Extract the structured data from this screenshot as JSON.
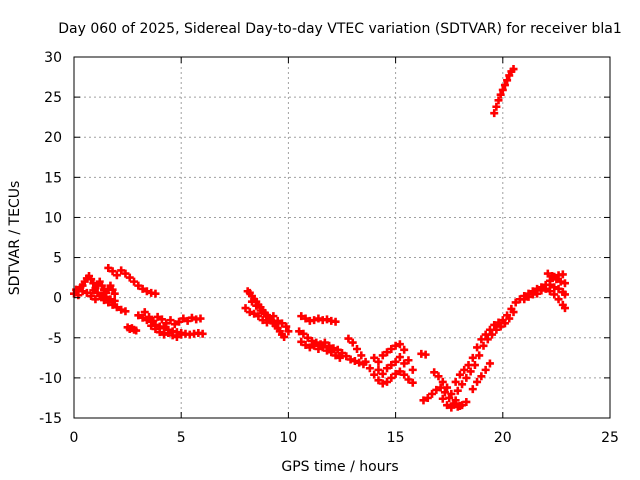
{
  "chart_data": {
    "type": "scatter",
    "title": "Day 060 of 2025, Sidereal Day-to-day VTEC variation (SDTVAR) for receiver bla1",
    "xlabel": "GPS time / hours",
    "ylabel": "SDTVAR / TECUs",
    "xlim": [
      0,
      25
    ],
    "ylim": [
      -15,
      30
    ],
    "xticks": [
      0,
      5,
      10,
      15,
      20,
      25
    ],
    "yticks": [
      -15,
      -10,
      -5,
      0,
      5,
      10,
      15,
      20,
      25,
      30
    ],
    "grid": true,
    "marker": "plus",
    "series": [
      {
        "name": "bla1",
        "color": "#ff0000",
        "points": [
          [
            0.0,
            0.5
          ],
          [
            0.1,
            1.0
          ],
          [
            0.2,
            0.8
          ],
          [
            0.3,
            1.3
          ],
          [
            0.4,
            1.5
          ],
          [
            0.5,
            2.0
          ],
          [
            0.6,
            2.4
          ],
          [
            0.7,
            2.7
          ],
          [
            0.8,
            2.3
          ],
          [
            0.9,
            1.8
          ],
          [
            1.0,
            1.2
          ],
          [
            1.1,
            1.6
          ],
          [
            1.2,
            2.0
          ],
          [
            1.3,
            1.5
          ],
          [
            1.4,
            1.0
          ],
          [
            1.5,
            0.6
          ],
          [
            1.6,
            1.1
          ],
          [
            1.7,
            1.5
          ],
          [
            1.8,
            1.0
          ],
          [
            1.9,
            0.5
          ],
          [
            0.2,
            0.3
          ],
          [
            0.4,
            0.8
          ],
          [
            0.6,
            0.6
          ],
          [
            0.8,
            0.2
          ],
          [
            1.0,
            -0.2
          ],
          [
            1.2,
            0.2
          ],
          [
            1.4,
            -0.3
          ],
          [
            1.6,
            -0.6
          ],
          [
            1.8,
            -0.9
          ],
          [
            2.0,
            -1.2
          ],
          [
            2.2,
            -1.5
          ],
          [
            2.4,
            -1.7
          ],
          [
            1.6,
            3.7
          ],
          [
            1.8,
            3.3
          ],
          [
            2.0,
            2.8
          ],
          [
            2.2,
            3.4
          ],
          [
            2.4,
            3.0
          ],
          [
            2.6,
            2.5
          ],
          [
            2.8,
            2.0
          ],
          [
            3.0,
            1.5
          ],
          [
            3.2,
            1.1
          ],
          [
            3.4,
            0.8
          ],
          [
            3.6,
            0.6
          ],
          [
            3.8,
            0.5
          ],
          [
            0.9,
            0.9
          ],
          [
            1.1,
            0.6
          ],
          [
            1.3,
            0.3
          ],
          [
            1.5,
            0.1
          ],
          [
            1.7,
            -0.2
          ],
          [
            1.9,
            -0.4
          ],
          [
            2.5,
            -3.7
          ],
          [
            2.6,
            -3.9
          ],
          [
            2.7,
            -3.8
          ],
          [
            2.8,
            -4.0
          ],
          [
            2.9,
            -4.1
          ],
          [
            3.0,
            -2.2
          ],
          [
            3.2,
            -2.5
          ],
          [
            3.4,
            -2.8
          ],
          [
            3.6,
            -3.0
          ],
          [
            3.8,
            -3.4
          ],
          [
            4.0,
            -3.6
          ],
          [
            4.2,
            -3.8
          ],
          [
            4.4,
            -4.0
          ],
          [
            4.6,
            -4.2
          ],
          [
            4.8,
            -4.3
          ],
          [
            5.0,
            -4.4
          ],
          [
            5.2,
            -4.5
          ],
          [
            5.4,
            -4.6
          ],
          [
            5.6,
            -4.5
          ],
          [
            5.8,
            -4.4
          ],
          [
            6.0,
            -4.5
          ],
          [
            3.3,
            -1.8
          ],
          [
            3.5,
            -2.4
          ],
          [
            3.7,
            -2.9
          ],
          [
            3.9,
            -2.4
          ],
          [
            4.1,
            -2.7
          ],
          [
            4.3,
            -3.2
          ],
          [
            4.5,
            -2.8
          ],
          [
            4.7,
            -3.3
          ],
          [
            4.9,
            -3.0
          ],
          [
            5.1,
            -2.6
          ],
          [
            5.3,
            -2.9
          ],
          [
            5.5,
            -2.5
          ],
          [
            5.7,
            -2.7
          ],
          [
            5.9,
            -2.6
          ],
          [
            3.6,
            -3.5
          ],
          [
            3.8,
            -3.9
          ],
          [
            4.0,
            -4.3
          ],
          [
            4.2,
            -4.6
          ],
          [
            4.4,
            -4.4
          ],
          [
            4.6,
            -4.7
          ],
          [
            4.8,
            -4.9
          ],
          [
            5.0,
            -4.6
          ],
          [
            8.1,
            0.8
          ],
          [
            8.2,
            0.6
          ],
          [
            8.3,
            0.2
          ],
          [
            8.4,
            -0.2
          ],
          [
            8.5,
            -0.5
          ],
          [
            8.6,
            -0.9
          ],
          [
            8.7,
            -1.2
          ],
          [
            8.8,
            -1.6
          ],
          [
            8.9,
            -1.9
          ],
          [
            9.0,
            -2.2
          ],
          [
            9.1,
            -2.5
          ],
          [
            9.2,
            -2.8
          ],
          [
            9.3,
            -3.2
          ],
          [
            9.4,
            -3.5
          ],
          [
            9.5,
            -3.8
          ],
          [
            9.6,
            -4.2
          ],
          [
            9.7,
            -4.6
          ],
          [
            9.8,
            -4.9
          ],
          [
            8.3,
            -0.5
          ],
          [
            8.5,
            -1.0
          ],
          [
            8.7,
            -1.6
          ],
          [
            8.9,
            -2.0
          ],
          [
            9.1,
            -2.6
          ],
          [
            9.3,
            -2.3
          ],
          [
            9.5,
            -2.9
          ],
          [
            9.7,
            -3.2
          ],
          [
            9.9,
            -3.6
          ],
          [
            10.0,
            -4.2
          ],
          [
            8.0,
            -1.3
          ],
          [
            8.2,
            -1.8
          ],
          [
            8.4,
            -2.0
          ],
          [
            8.6,
            -2.3
          ],
          [
            8.8,
            -2.8
          ],
          [
            9.0,
            -3.1
          ],
          [
            10.6,
            -2.3
          ],
          [
            10.8,
            -2.6
          ],
          [
            11.0,
            -2.9
          ],
          [
            11.2,
            -2.8
          ],
          [
            11.4,
            -2.6
          ],
          [
            11.6,
            -2.8
          ],
          [
            11.8,
            -2.7
          ],
          [
            12.0,
            -2.9
          ],
          [
            12.2,
            -3.0
          ],
          [
            10.5,
            -4.2
          ],
          [
            10.7,
            -4.5
          ],
          [
            10.9,
            -5.0
          ],
          [
            11.1,
            -5.4
          ],
          [
            11.3,
            -5.6
          ],
          [
            11.5,
            -5.8
          ],
          [
            11.7,
            -5.6
          ],
          [
            11.9,
            -6.0
          ],
          [
            12.1,
            -6.3
          ],
          [
            12.3,
            -6.5
          ],
          [
            12.5,
            -6.9
          ],
          [
            12.7,
            -7.3
          ],
          [
            12.9,
            -7.7
          ],
          [
            13.1,
            -7.9
          ],
          [
            13.3,
            -8.1
          ],
          [
            13.5,
            -8.3
          ],
          [
            10.6,
            -5.5
          ],
          [
            10.8,
            -5.9
          ],
          [
            11.0,
            -6.2
          ],
          [
            11.2,
            -6.0
          ],
          [
            11.4,
            -6.4
          ],
          [
            11.6,
            -6.2
          ],
          [
            11.8,
            -6.6
          ],
          [
            12.0,
            -6.8
          ],
          [
            12.2,
            -7.2
          ],
          [
            12.4,
            -7.5
          ],
          [
            12.8,
            -5.1
          ],
          [
            13.0,
            -5.6
          ],
          [
            13.2,
            -6.4
          ],
          [
            13.4,
            -7.2
          ],
          [
            13.6,
            -8.0
          ],
          [
            13.8,
            -8.8
          ],
          [
            14.0,
            -9.6
          ],
          [
            14.2,
            -10.3
          ],
          [
            14.4,
            -10.7
          ],
          [
            14.6,
            -10.5
          ],
          [
            14.8,
            -10.0
          ],
          [
            15.0,
            -9.5
          ],
          [
            15.2,
            -9.2
          ],
          [
            15.4,
            -9.6
          ],
          [
            15.6,
            -10.2
          ],
          [
            15.8,
            -10.6
          ],
          [
            14.0,
            -7.5
          ],
          [
            14.2,
            -8.0
          ],
          [
            14.4,
            -7.2
          ],
          [
            14.6,
            -6.8
          ],
          [
            14.8,
            -6.4
          ],
          [
            15.0,
            -6.0
          ],
          [
            15.2,
            -5.8
          ],
          [
            15.4,
            -6.5
          ],
          [
            15.6,
            -7.8
          ],
          [
            15.8,
            -9.0
          ],
          [
            14.2,
            -9.0
          ],
          [
            14.4,
            -9.5
          ],
          [
            14.6,
            -8.8
          ],
          [
            14.8,
            -8.4
          ],
          [
            15.0,
            -8.0
          ],
          [
            15.2,
            -7.4
          ],
          [
            15.4,
            -8.2
          ],
          [
            16.2,
            -7.0
          ],
          [
            16.4,
            -7.1
          ],
          [
            16.3,
            -12.8
          ],
          [
            16.5,
            -12.5
          ],
          [
            16.7,
            -12.0
          ],
          [
            16.9,
            -11.5
          ],
          [
            17.1,
            -11.2
          ],
          [
            17.3,
            -11.8
          ],
          [
            17.5,
            -12.5
          ],
          [
            17.7,
            -13.2
          ],
          [
            17.9,
            -13.6
          ],
          [
            18.1,
            -13.4
          ],
          [
            18.3,
            -13.0
          ],
          [
            16.8,
            -9.3
          ],
          [
            17.0,
            -9.8
          ],
          [
            17.2,
            -10.5
          ],
          [
            17.4,
            -11.2
          ],
          [
            17.6,
            -12.0
          ],
          [
            17.8,
            -12.8
          ],
          [
            18.0,
            -13.5
          ],
          [
            17.2,
            -12.6
          ],
          [
            17.4,
            -13.4
          ],
          [
            17.6,
            -13.7
          ],
          [
            17.8,
            -13.2
          ],
          [
            17.8,
            -10.5
          ],
          [
            18.0,
            -9.6
          ],
          [
            18.2,
            -9.0
          ],
          [
            18.4,
            -8.4
          ],
          [
            18.6,
            -7.5
          ],
          [
            18.8,
            -6.2
          ],
          [
            19.0,
            -5.2
          ],
          [
            19.2,
            -4.6
          ],
          [
            19.4,
            -4.0
          ],
          [
            19.6,
            -3.4
          ],
          [
            19.8,
            -3.1
          ],
          [
            20.0,
            -2.8
          ],
          [
            20.2,
            -2.2
          ],
          [
            20.4,
            -1.4
          ],
          [
            20.6,
            -0.6
          ],
          [
            20.8,
            -0.2
          ],
          [
            21.0,
            0.2
          ],
          [
            17.9,
            -11.6
          ],
          [
            18.1,
            -10.8
          ],
          [
            18.3,
            -10.0
          ],
          [
            18.5,
            -9.2
          ],
          [
            18.7,
            -8.4
          ],
          [
            18.9,
            -7.2
          ],
          [
            19.1,
            -6.0
          ],
          [
            19.3,
            -5.2
          ],
          [
            19.5,
            -4.6
          ],
          [
            19.7,
            -4.0
          ],
          [
            19.9,
            -3.6
          ],
          [
            20.1,
            -3.2
          ],
          [
            20.3,
            -2.6
          ],
          [
            20.5,
            -1.8
          ],
          [
            18.6,
            -11.4
          ],
          [
            18.8,
            -10.5
          ],
          [
            19.0,
            -9.8
          ],
          [
            19.2,
            -9.0
          ],
          [
            19.4,
            -8.2
          ],
          [
            21.2,
            0.5
          ],
          [
            21.4,
            0.8
          ],
          [
            21.6,
            1.1
          ],
          [
            21.8,
            1.3
          ],
          [
            22.0,
            1.6
          ],
          [
            22.2,
            2.1
          ],
          [
            22.4,
            2.6
          ],
          [
            22.6,
            2.8
          ],
          [
            22.8,
            2.9
          ],
          [
            21.0,
            -0.2
          ],
          [
            21.2,
            0.1
          ],
          [
            21.4,
            0.4
          ],
          [
            21.6,
            0.5
          ],
          [
            21.8,
            0.9
          ],
          [
            22.0,
            1.1
          ],
          [
            22.2,
            0.8
          ],
          [
            22.4,
            0.4
          ],
          [
            22.6,
            -0.2
          ],
          [
            22.8,
            -0.9
          ],
          [
            22.9,
            -1.3
          ],
          [
            22.1,
            3.0
          ],
          [
            22.3,
            2.7
          ],
          [
            22.5,
            2.3
          ],
          [
            22.7,
            2.0
          ],
          [
            22.9,
            1.8
          ],
          [
            22.2,
            1.6
          ],
          [
            22.4,
            1.3
          ],
          [
            22.6,
            1.1
          ],
          [
            22.8,
            0.7
          ],
          [
            22.9,
            0.4
          ],
          [
            19.6,
            23.0
          ],
          [
            19.7,
            23.8
          ],
          [
            19.8,
            24.6
          ],
          [
            19.9,
            25.3
          ],
          [
            20.0,
            25.9
          ],
          [
            20.1,
            26.5
          ],
          [
            20.2,
            27.1
          ],
          [
            20.3,
            27.7
          ],
          [
            20.4,
            28.2
          ],
          [
            20.5,
            28.5
          ]
        ]
      }
    ]
  }
}
